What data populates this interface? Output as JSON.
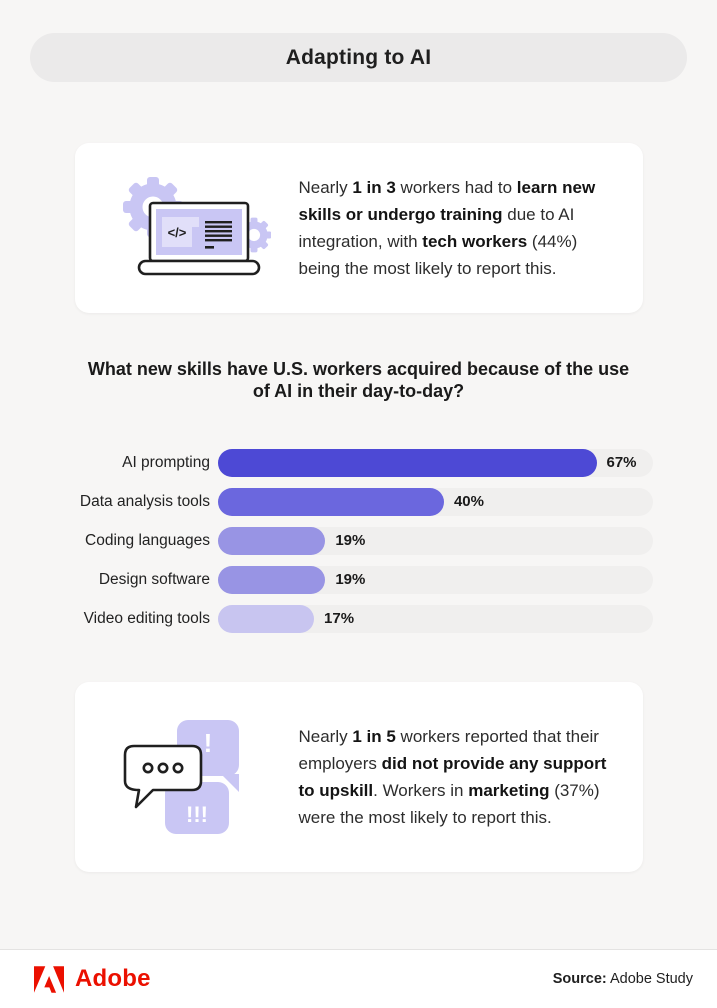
{
  "header": {
    "title": "Adapting to AI"
  },
  "cards": [
    {
      "icon": "laptop-code-icon",
      "segments": [
        {
          "text": "Nearly "
        },
        {
          "text": "1 in 3",
          "bold": true
        },
        {
          "text": " workers had to "
        },
        {
          "text": "learn new skills or undergo training",
          "bold": true
        },
        {
          "text": " due to AI integration, with "
        },
        {
          "text": "tech workers",
          "bold": true
        },
        {
          "text": " (44%) being the most likely to report this."
        }
      ]
    },
    {
      "icon": "chat-alert-icon",
      "segments": [
        {
          "text": "Nearly "
        },
        {
          "text": "1 in 5",
          "bold": true
        },
        {
          "text": " workers reported that their employers "
        },
        {
          "text": "did not provide any support to upskill",
          "bold": true
        },
        {
          "text": ". Workers in "
        },
        {
          "text": "marketing",
          "bold": true
        },
        {
          "text": " (37%) were the most likely to report this."
        }
      ]
    }
  ],
  "chart_data": {
    "type": "bar",
    "orientation": "horizontal",
    "title": "What new skills have U.S. workers acquired because of the use of AI in their day-to-day?",
    "categories": [
      "AI prompting",
      "Data analysis tools",
      "Coding languages",
      "Design software",
      "Video editing tools"
    ],
    "values": [
      67,
      40,
      19,
      19,
      17
    ],
    "value_suffix": "%",
    "xlim": [
      0,
      77
    ],
    "grid": false,
    "legend": false,
    "bar_colors": [
      "#4d49d5",
      "#6b67de",
      "#9894e4",
      "#9894e4",
      "#c8c5f0"
    ],
    "track_color": "#f0efee"
  },
  "icons": {
    "laptop_code_text": "</>",
    "alert_single": "!",
    "alert_triple": "!!!"
  },
  "footer": {
    "brand": "Adobe",
    "source_label": "Source:",
    "source_text": " Adobe Study"
  },
  "colors": {
    "page_bg": "#f7f6f5",
    "pill_bg": "#ebeaea",
    "card_bg": "#ffffff",
    "icon_purple": "#c9c6f4",
    "icon_purple_light": "#e1dff9",
    "adobe_red": "#eb1000"
  }
}
